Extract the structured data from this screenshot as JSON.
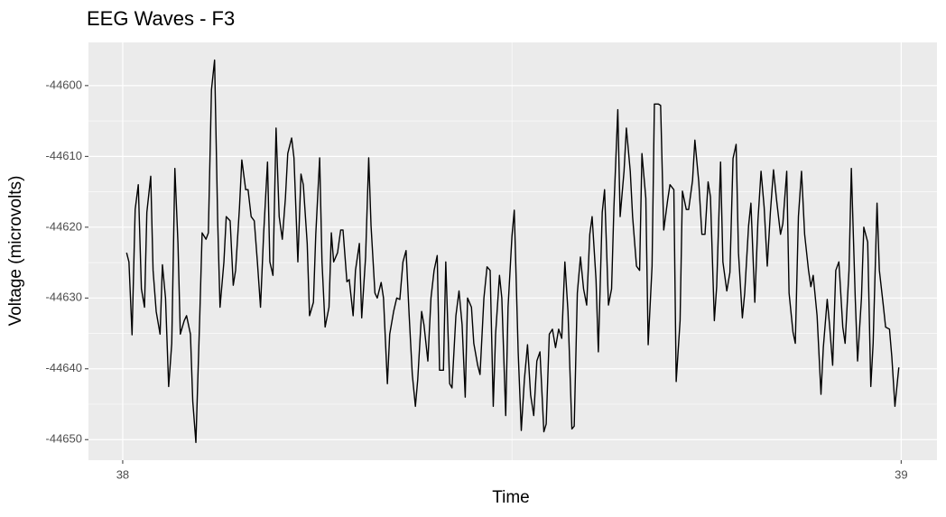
{
  "chart_data": {
    "type": "line",
    "title": "EEG Waves - F3",
    "x_label": "Time",
    "y_label": "Voltage (microvolts)",
    "color": "#000000",
    "grid": true,
    "xlim": [
      37.956,
      39.046
    ],
    "ylim": [
      -44652.9,
      -44593.9
    ],
    "xticks": [
      38,
      39
    ],
    "yticks": [
      -44600,
      -44610,
      -44620,
      -44630,
      -44640,
      -44650
    ],
    "x_minor_grid": [
      38.5
    ],
    "y_minor_grid": [
      -44605,
      -44615,
      -44625,
      -44635,
      -44645
    ],
    "x": [
      38.005,
      38.008,
      38.012,
      38.016,
      38.02,
      38.024,
      38.028,
      38.031,
      38.036,
      38.039,
      38.043,
      38.048,
      38.051,
      38.055,
      38.059,
      38.063,
      38.067,
      38.071,
      38.074,
      38.079,
      38.082,
      38.087,
      38.09,
      38.094,
      38.099,
      38.102,
      38.107,
      38.11,
      38.114,
      38.118,
      38.122,
      38.125,
      38.13,
      38.133,
      38.138,
      38.142,
      38.145,
      38.15,
      38.153,
      38.158,
      38.161,
      38.165,
      38.169,
      38.173,
      38.177,
      38.181,
      38.186,
      38.189,
      38.193,
      38.197,
      38.201,
      38.205,
      38.209,
      38.212,
      38.217,
      38.22,
      38.225,
      38.229,
      38.232,
      38.237,
      38.24,
      38.245,
      38.248,
      38.253,
      38.256,
      38.26,
      38.265,
      38.268,
      38.271,
      38.276,
      38.28,
      38.283,
      38.288,
      38.291,
      38.296,
      38.299,
      38.304,
      38.307,
      38.312,
      38.316,
      38.319,
      38.324,
      38.327,
      38.332,
      38.335,
      38.34,
      38.343,
      38.348,
      38.352,
      38.356,
      38.36,
      38.364,
      38.368,
      38.372,
      38.376,
      38.379,
      38.384,
      38.387,
      38.392,
      38.396,
      38.4,
      38.404,
      38.407,
      38.412,
      38.415,
      38.42,
      38.423,
      38.428,
      38.432,
      38.436,
      38.44,
      38.443,
      38.448,
      38.451,
      38.456,
      38.459,
      38.464,
      38.468,
      38.472,
      38.476,
      38.479,
      38.484,
      38.487,
      38.492,
      38.495,
      38.5,
      38.503,
      38.508,
      38.512,
      38.516,
      38.52,
      38.524,
      38.528,
      38.532,
      38.536,
      38.541,
      38.544,
      38.548,
      38.552,
      38.556,
      38.56,
      38.564,
      38.568,
      38.572,
      38.577,
      38.58,
      38.584,
      38.588,
      38.592,
      38.596,
      38.6,
      38.603,
      38.608,
      38.611,
      38.616,
      38.619,
      38.624,
      38.628,
      38.631,
      38.636,
      38.639,
      38.644,
      38.647,
      38.652,
      38.655,
      38.66,
      38.664,
      38.667,
      38.672,
      38.675,
      38.68,
      38.683,
      38.688,
      38.691,
      38.695,
      38.7,
      38.703,
      38.708,
      38.711,
      38.716,
      38.719,
      38.724,
      38.727,
      38.732,
      38.735,
      38.74,
      38.744,
      38.748,
      38.752,
      38.755,
      38.76,
      38.763,
      38.768,
      38.771,
      38.776,
      38.78,
      38.784,
      38.788,
      38.791,
      38.796,
      38.799,
      38.804,
      38.807,
      38.812,
      38.816,
      38.82,
      38.824,
      38.828,
      38.832,
      38.836,
      38.84,
      38.845,
      38.848,
      38.853,
      38.856,
      38.861,
      38.864,
      38.868,
      38.872,
      38.876,
      38.881,
      38.884,
      38.887,
      38.892,
      38.897,
      38.9,
      38.905,
      38.908,
      38.912,
      38.916,
      38.92,
      38.925,
      38.928,
      38.933,
      38.936,
      38.941,
      38.944,
      38.949,
      38.952,
      38.957,
      38.961,
      38.964,
      38.969,
      38.972,
      38.977,
      38.98,
      38.985,
      38.988,
      38.992,
      38.997
    ],
    "values": [
      -44623.6,
      -44624.9,
      -44635.2,
      -44617.5,
      -44614.0,
      -44628.7,
      -44631.3,
      -44617.9,
      -44612.8,
      -44626.1,
      -44631.9,
      -44635.1,
      -44625.3,
      -44630.0,
      -44642.5,
      -44636.4,
      -44611.7,
      -44622.3,
      -44635.1,
      -44633.2,
      -44632.5,
      -44635.1,
      -44644.6,
      -44650.4,
      -44632.5,
      -44620.8,
      -44621.7,
      -44620.8,
      -44600.6,
      -44596.4,
      -44619.1,
      -44631.3,
      -44624.9,
      -44618.5,
      -44619.1,
      -44628.2,
      -44626.1,
      -44617.2,
      -44610.5,
      -44614.7,
      -44614.7,
      -44618.5,
      -44619.1,
      -44624.9,
      -44631.3,
      -44621.0,
      -44610.8,
      -44624.9,
      -44626.8,
      -44606.0,
      -44618.5,
      -44621.7,
      -44615.9,
      -44609.6,
      -44607.4,
      -44610.2,
      -44624.9,
      -44612.5,
      -44614.0,
      -44622.3,
      -44632.5,
      -44630.6,
      -44621.0,
      -44610.2,
      -44624.9,
      -44634.1,
      -44631.3,
      -44620.8,
      -44624.9,
      -44623.6,
      -44620.4,
      -44620.4,
      -44627.7,
      -44627.4,
      -44632.5,
      -44626.1,
      -44622.3,
      -44632.8,
      -44624.2,
      -44610.2,
      -44619.8,
      -44629.3,
      -44630.0,
      -44627.8,
      -44630.0,
      -44642.1,
      -44635.1,
      -44631.9,
      -44630.0,
      -44630.2,
      -44624.9,
      -44623.3,
      -44632.5,
      -44640.8,
      -44645.3,
      -44641.5,
      -44631.9,
      -44633.8,
      -44638.9,
      -44630.0,
      -44626.1,
      -44624.0,
      -44640.2,
      -44640.2,
      -44624.9,
      -44642.1,
      -44642.7,
      -44632.5,
      -44629.0,
      -44633.8,
      -44644.0,
      -44630.0,
      -44631.3,
      -44636.4,
      -44639.5,
      -44640.8,
      -44630.0,
      -44625.6,
      -44626.1,
      -44645.3,
      -44635.1,
      -44626.8,
      -44630.0,
      -44646.6,
      -44631.3,
      -44621.3,
      -44617.6,
      -44637.6,
      -44648.7,
      -44641.5,
      -44636.6,
      -44643.7,
      -44646.6,
      -44638.9,
      -44637.6,
      -44648.9,
      -44647.8,
      -44635.1,
      -44634.4,
      -44637.0,
      -44634.4,
      -44635.7,
      -44624.9,
      -44631.9,
      -44648.5,
      -44648.1,
      -44629.3,
      -44624.2,
      -44628.7,
      -44631.0,
      -44621.0,
      -44618.5,
      -44627.4,
      -44637.6,
      -44617.9,
      -44614.7,
      -44631.0,
      -44628.7,
      -44617.2,
      -44603.4,
      -44618.5,
      -44612.1,
      -44606.0,
      -44612.1,
      -44618.5,
      -44625.5,
      -44626.1,
      -44609.6,
      -44615.9,
      -44636.6,
      -44625.5,
      -44602.6,
      -44602.6,
      -44602.8,
      -44620.4,
      -44616.2,
      -44614.0,
      -44614.7,
      -44641.8,
      -44633.2,
      -44614.9,
      -44617.5,
      -44617.5,
      -44613.4,
      -44607.7,
      -44613.6,
      -44621.0,
      -44621.0,
      -44613.6,
      -44615.7,
      -44633.2,
      -44628.4,
      -44610.8,
      -44624.9,
      -44629.0,
      -44626.4,
      -44610.3,
      -44608.3,
      -44623.6,
      -44632.8,
      -44629.3,
      -44619.8,
      -44616.6,
      -44630.6,
      -44619.1,
      -44612.1,
      -44617.2,
      -44625.5,
      -44617.9,
      -44611.9,
      -44616.2,
      -44621.0,
      -44619.5,
      -44612.1,
      -44629.3,
      -44634.8,
      -44636.4,
      -44618.5,
      -44612.1,
      -44621.0,
      -44626.1,
      -44628.4,
      -44626.8,
      -44632.5,
      -44643.6,
      -44637.0,
      -44630.2,
      -44633.8,
      -44639.5,
      -44626.1,
      -44624.9,
      -44634.1,
      -44636.4,
      -44626.1,
      -44611.7,
      -44630.0,
      -44638.9,
      -44630.0,
      -44620.0,
      -44622.1,
      -44642.5,
      -44636.4,
      -44616.6,
      -44626.1,
      -44631.0,
      -44634.1,
      -44634.4,
      -44638.3,
      -44645.3,
      -44639.8
    ]
  }
}
